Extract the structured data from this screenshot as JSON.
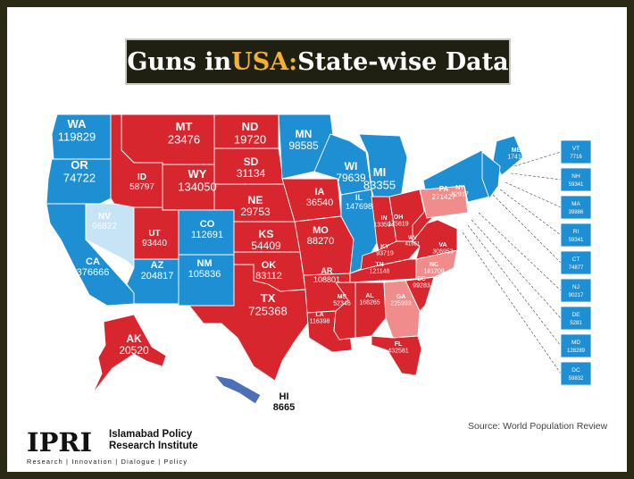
{
  "title": {
    "prefix": "Guns in ",
    "accent": "USA:",
    "suffix": " State-wise Data"
  },
  "colors": {
    "red": "#d8262f",
    "blue": "#1f8fd3",
    "light_blue": "#c6e4f5",
    "light_red": "#f08c8c",
    "hawaii": "#4d6fb8",
    "frame": "#2b2a14",
    "accent": "#f2b134"
  },
  "states": [
    {
      "abbr": "WA",
      "value": "119829"
    },
    {
      "abbr": "OR",
      "value": "74722"
    },
    {
      "abbr": "CA",
      "value": "376666"
    },
    {
      "abbr": "NV",
      "value": "96822"
    },
    {
      "abbr": "ID",
      "value": "58797"
    },
    {
      "abbr": "MT",
      "value": "23476"
    },
    {
      "abbr": "WY",
      "value": "134050"
    },
    {
      "abbr": "UT",
      "value": "93440"
    },
    {
      "abbr": "AZ",
      "value": "204817"
    },
    {
      "abbr": "CO",
      "value": "112691"
    },
    {
      "abbr": "NM",
      "value": "105836"
    },
    {
      "abbr": "ND",
      "value": "19720"
    },
    {
      "abbr": "SD",
      "value": "31134"
    },
    {
      "abbr": "NE",
      "value": "29753"
    },
    {
      "abbr": "KS",
      "value": "54409"
    },
    {
      "abbr": "OK",
      "value": "83112"
    },
    {
      "abbr": "TX",
      "value": "725368"
    },
    {
      "abbr": "MN",
      "value": "98585"
    },
    {
      "abbr": "IA",
      "value": "36540"
    },
    {
      "abbr": "MO",
      "value": "88270"
    },
    {
      "abbr": "AR",
      "value": "108801"
    },
    {
      "abbr": "LA",
      "value": "116398"
    },
    {
      "abbr": "WI",
      "value": "79639"
    },
    {
      "abbr": "MI",
      "value": "83355"
    },
    {
      "abbr": "IL",
      "value": "147698"
    },
    {
      "abbr": "IN",
      "value": "133594"
    },
    {
      "abbr": "OH",
      "value": "175819"
    },
    {
      "abbr": "KY",
      "value": "93719"
    },
    {
      "abbr": "TN",
      "value": "121148"
    },
    {
      "abbr": "MS",
      "value": "52346"
    },
    {
      "abbr": "AL",
      "value": "168265"
    },
    {
      "abbr": "GA",
      "value": "225993"
    },
    {
      "abbr": "FL",
      "value": "432581"
    },
    {
      "abbr": "SC",
      "value": "99283"
    },
    {
      "abbr": "NC",
      "value": "181209"
    },
    {
      "abbr": "VA",
      "value": "306953"
    },
    {
      "abbr": "WV",
      "value": "41651"
    },
    {
      "abbr": "PA",
      "value": "271427"
    },
    {
      "abbr": "NY",
      "value": "82917"
    },
    {
      "abbr": "ME",
      "value": "17410"
    },
    {
      "abbr": "AK",
      "value": "20520"
    },
    {
      "abbr": "HI",
      "value": "8665"
    }
  ],
  "small_states": [
    {
      "abbr": "VT",
      "value": "7716"
    },
    {
      "abbr": "NH",
      "value": "59341"
    },
    {
      "abbr": "MA",
      "value": "39886"
    },
    {
      "abbr": "RI",
      "value": "59341"
    },
    {
      "abbr": "CT",
      "value": "74877"
    },
    {
      "abbr": "NJ",
      "value": "90217"
    },
    {
      "abbr": "DE",
      "value": "5281"
    },
    {
      "abbr": "MD",
      "value": "128289"
    },
    {
      "abbr": "DC",
      "value": "59832"
    }
  ],
  "source": "Source: World Population Review",
  "logo": {
    "mark": "IPRI",
    "name_line1": "Islamabad Policy",
    "name_line2": "Research Institute",
    "tagline": "Research | Innovation | Dialogue | Policy"
  }
}
